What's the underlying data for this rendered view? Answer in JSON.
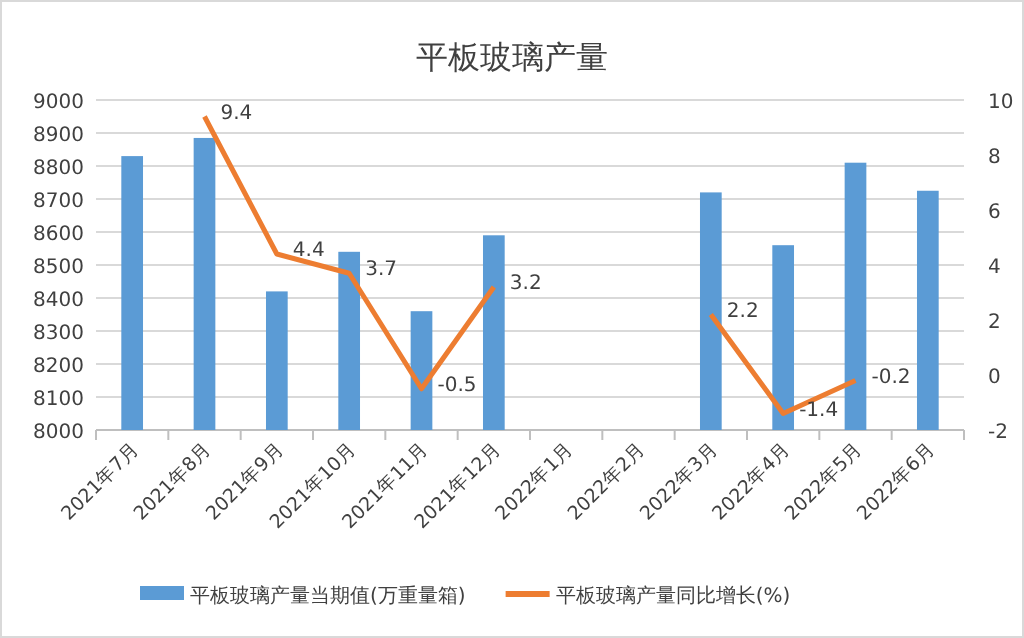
{
  "chart_data": {
    "type": "bar",
    "title": "平板玻璃产量",
    "categories": [
      "2021年7月",
      "2021年8月",
      "2021年9月",
      "2021年10月",
      "2021年11月",
      "2021年12月",
      "2022年1月",
      "2022年2月",
      "2022年3月",
      "2022年4月",
      "2022年5月",
      "2022年6月"
    ],
    "series": [
      {
        "name": "平板玻璃产量当期值(万重量箱)",
        "color": "#5b9bd5",
        "values": [
          8830,
          8885,
          8420,
          8540,
          8360,
          8590,
          null,
          null,
          8720,
          8560,
          8810,
          8725
        ]
      },
      {
        "name": "平板玻璃产量同比增长(%)",
        "type": "line",
        "axis": "y2",
        "color": "#ed7d31",
        "values": [
          null,
          9.4,
          4.4,
          3.7,
          -0.5,
          3.2,
          null,
          null,
          2.2,
          -1.4,
          -0.2,
          null
        ],
        "value_labels": [
          null,
          "9.4",
          "4.4",
          "3.7",
          "-0.5",
          "3.2",
          null,
          null,
          "2.2",
          "-1.4",
          "-0.2",
          null
        ]
      }
    ],
    "ylim": [
      8000,
      9000
    ],
    "yticks": [
      8000,
      8100,
      8200,
      8300,
      8400,
      8500,
      8600,
      8700,
      8800,
      8900,
      9000
    ],
    "y2lim": [
      -2,
      10
    ],
    "y2ticks": [
      -2,
      0,
      2,
      4,
      6,
      8,
      10
    ],
    "grid": "y",
    "legend": "bottom"
  }
}
